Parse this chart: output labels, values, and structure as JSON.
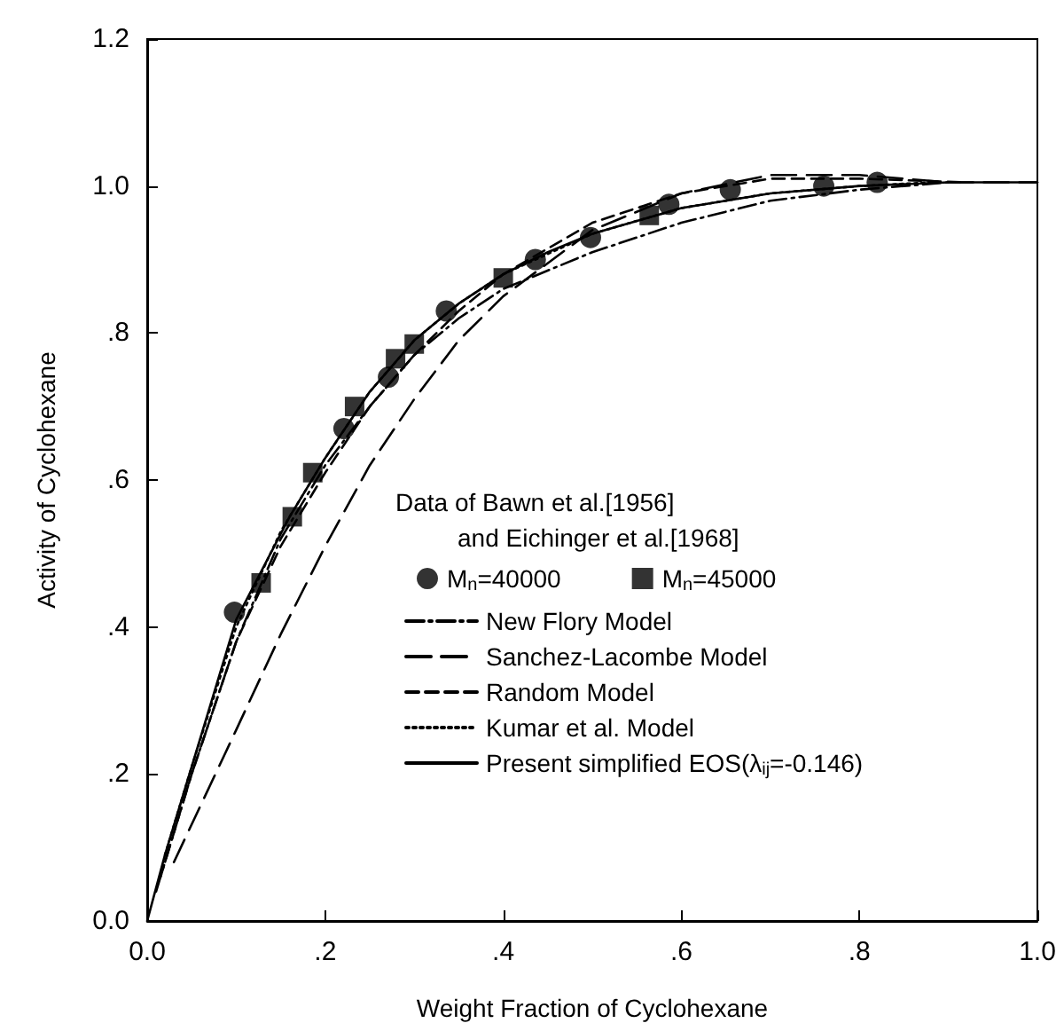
{
  "chart_data": {
    "type": "line",
    "xlabel": "Weight Fraction of Cyclohexane",
    "ylabel": "Activity of Cyclohexane",
    "legend_title": "Data of Bawn et al.[1956]\n         and Eichinger et al.[1968]",
    "xlim": [
      0,
      1
    ],
    "ylim": [
      0,
      1.2
    ],
    "xticks": [
      {
        "value": 0,
        "label": "0.0"
      },
      {
        "value": 0.2,
        "label": ".2"
      },
      {
        "value": 0.4,
        "label": ".4"
      },
      {
        "value": 0.6,
        "label": ".6"
      },
      {
        "value": 0.8,
        "label": ".8"
      },
      {
        "value": 1,
        "label": "1.0"
      }
    ],
    "yticks": [
      {
        "value": 0,
        "label": "0.0"
      },
      {
        "value": 0.2,
        "label": ".2"
      },
      {
        "value": 0.4,
        "label": ".4"
      },
      {
        "value": 0.6,
        "label": ".6"
      },
      {
        "value": 0.8,
        "label": ".8"
      },
      {
        "value": 1,
        "label": "1.0"
      },
      {
        "value": 1.2,
        "label": "1.2"
      }
    ],
    "grid": false,
    "legend": "right",
    "series": [
      {
        "name": "M$_{n}$=40000",
        "type": "scatter",
        "marker": "circle",
        "color": "#000000",
        "x": [
          0.098,
          0.221,
          0.271,
          0.336,
          0.436,
          0.498,
          0.586,
          0.655,
          0.76,
          0.82
        ],
        "values": [
          0.42,
          0.67,
          0.74,
          0.83,
          0.9,
          0.93,
          0.975,
          0.995,
          1.0,
          1.005
        ]
      },
      {
        "name": "M$_{n}$=45000",
        "type": "scatter",
        "marker": "square",
        "color": "#000000",
        "x": [
          0.128,
          0.163,
          0.186,
          0.233,
          0.279,
          0.3,
          0.4,
          0.564
        ],
        "values": [
          0.46,
          0.55,
          0.61,
          0.7,
          0.765,
          0.785,
          0.875,
          0.96
        ]
      },
      {
        "name": "New Flory Model",
        "line_style": "dashdot",
        "color": "#000000",
        "x": [
          0.01,
          0.05,
          0.1,
          0.15,
          0.2,
          0.25,
          0.3,
          0.35,
          0.4,
          0.5,
          0.6,
          0.7,
          0.8,
          0.9
        ],
        "values": [
          0.04,
          0.2,
          0.38,
          0.52,
          0.62,
          0.7,
          0.77,
          0.82,
          0.86,
          0.91,
          0.95,
          0.98,
          0.995,
          1.005
        ]
      },
      {
        "name": "Sanchez-Lacombe Model",
        "line_style": "longdash",
        "color": "#000000",
        "x": [
          0.03,
          0.1,
          0.15,
          0.2,
          0.25,
          0.3,
          0.35,
          0.4,
          0.5,
          0.6,
          0.7,
          0.8,
          0.9,
          1.0
        ],
        "values": [
          0.08,
          0.26,
          0.39,
          0.51,
          0.62,
          0.71,
          0.79,
          0.85,
          0.94,
          0.99,
          1.015,
          1.015,
          1.005,
          1.005
        ]
      },
      {
        "name": "Random Model",
        "line_style": "dashed",
        "color": "#000000",
        "x": [
          0.015,
          0.05,
          0.1,
          0.15,
          0.2,
          0.25,
          0.3,
          0.35,
          0.4,
          0.5,
          0.6,
          0.7,
          0.8,
          0.92
        ],
        "values": [
          0.06,
          0.2,
          0.38,
          0.51,
          0.61,
          0.7,
          0.77,
          0.83,
          0.88,
          0.95,
          0.99,
          1.01,
          1.01,
          1.005
        ]
      },
      {
        "name": "Kumar et al. Model",
        "line_style": "dotted",
        "color": "#000000",
        "x": [
          0.02,
          0.05,
          0.1,
          0.15,
          0.2,
          0.25,
          0.3,
          0.35,
          0.4,
          0.5,
          0.6,
          0.7,
          0.8,
          0.88
        ],
        "values": [
          0.09,
          0.21,
          0.4,
          0.53,
          0.63,
          0.72,
          0.79,
          0.84,
          0.88,
          0.935,
          0.97,
          0.99,
          1.0,
          1.005
        ]
      },
      {
        "name": "Present simplified EOS(λ$_{ij}$=-0.146)",
        "line_style": "solid",
        "color": "#000000",
        "x": [
          0,
          0.02,
          0.05,
          0.1,
          0.13,
          0.16,
          0.2,
          0.25,
          0.3,
          0.35,
          0.4,
          0.45,
          0.5,
          0.6,
          0.7,
          0.8,
          0.9,
          1.0
        ],
        "values": [
          0,
          0.09,
          0.21,
          0.41,
          0.48,
          0.55,
          0.63,
          0.72,
          0.79,
          0.84,
          0.88,
          0.91,
          0.935,
          0.97,
          0.99,
          1.0,
          1.005,
          1.005
        ]
      }
    ]
  }
}
